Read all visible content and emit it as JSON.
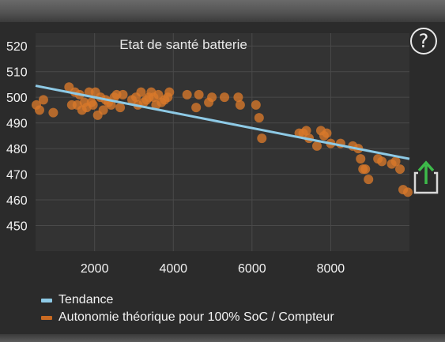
{
  "help": {
    "glyph": "?"
  },
  "share": {
    "icon": "share-icon",
    "arrow_color": "#3dbb4a",
    "box_color": "#d9d9d9"
  },
  "colors": {
    "trend": "#8ecae6",
    "points": "#d8782a",
    "grid": "#4a4a4a",
    "plot_bg": "#333333",
    "text": "#f2f2f2"
  },
  "chart_data": {
    "type": "scatter",
    "title": "Etat de santé batterie",
    "xlabel": "",
    "ylabel": "",
    "xlim": [
      500,
      10000
    ],
    "ylim": [
      440,
      525
    ],
    "xticks": [
      2000,
      4000,
      6000,
      8000
    ],
    "yticks": [
      450,
      460,
      470,
      480,
      490,
      500,
      510,
      520
    ],
    "grid": true,
    "legend_position": "bottom-left",
    "series": [
      {
        "name": "Tendance",
        "kind": "line",
        "x": [
          500,
          10000
        ],
        "y": [
          504.5,
          476
        ]
      },
      {
        "name": "Autonomie théorique pour 100% SoC / Compteur",
        "kind": "scatter",
        "x": [
          520,
          600,
          700,
          950,
          1350,
          1420,
          1500,
          1560,
          1620,
          1680,
          1740,
          1800,
          1860,
          1920,
          1960,
          2020,
          2080,
          2150,
          2220,
          2280,
          2350,
          2420,
          2500,
          2560,
          2650,
          2720,
          2950,
          3050,
          3100,
          3180,
          3250,
          3320,
          3380,
          3440,
          3500,
          3560,
          3620,
          3700,
          3780,
          3860,
          3900,
          4350,
          4580,
          4650,
          4900,
          4980,
          5300,
          5650,
          5700,
          6100,
          6180,
          6250,
          7200,
          7300,
          7380,
          7450,
          7650,
          7750,
          7830,
          7900,
          8000,
          8250,
          8560,
          8700,
          8760,
          8820,
          8880,
          8960,
          9200,
          9300,
          9550,
          9650,
          9760,
          9840,
          9960
        ],
        "y": [
          497,
          495,
          499,
          494,
          504,
          497,
          502,
          497,
          501,
          495,
          498,
          496,
          502,
          498,
          497,
          502,
          493,
          500,
          495,
          499,
          498,
          497,
          500,
          501,
          496,
          501,
          499,
          500,
          497,
          502,
          498,
          499,
          500,
          502,
          500,
          497,
          501,
          498,
          499,
          500,
          502,
          501,
          496,
          501,
          498,
          500,
          500,
          500,
          497,
          497,
          492,
          484,
          486,
          486,
          487,
          484,
          481,
          487,
          485,
          486,
          482,
          482,
          481,
          480,
          476,
          472,
          472,
          468,
          476,
          475,
          474,
          475,
          472,
          464,
          463
        ]
      }
    ]
  },
  "legend": {
    "items": [
      {
        "label": "Tendance",
        "color": "#8ecae6"
      },
      {
        "label": "Autonomie théorique pour 100% SoC / Compteur",
        "color": "#c96a22"
      }
    ]
  }
}
